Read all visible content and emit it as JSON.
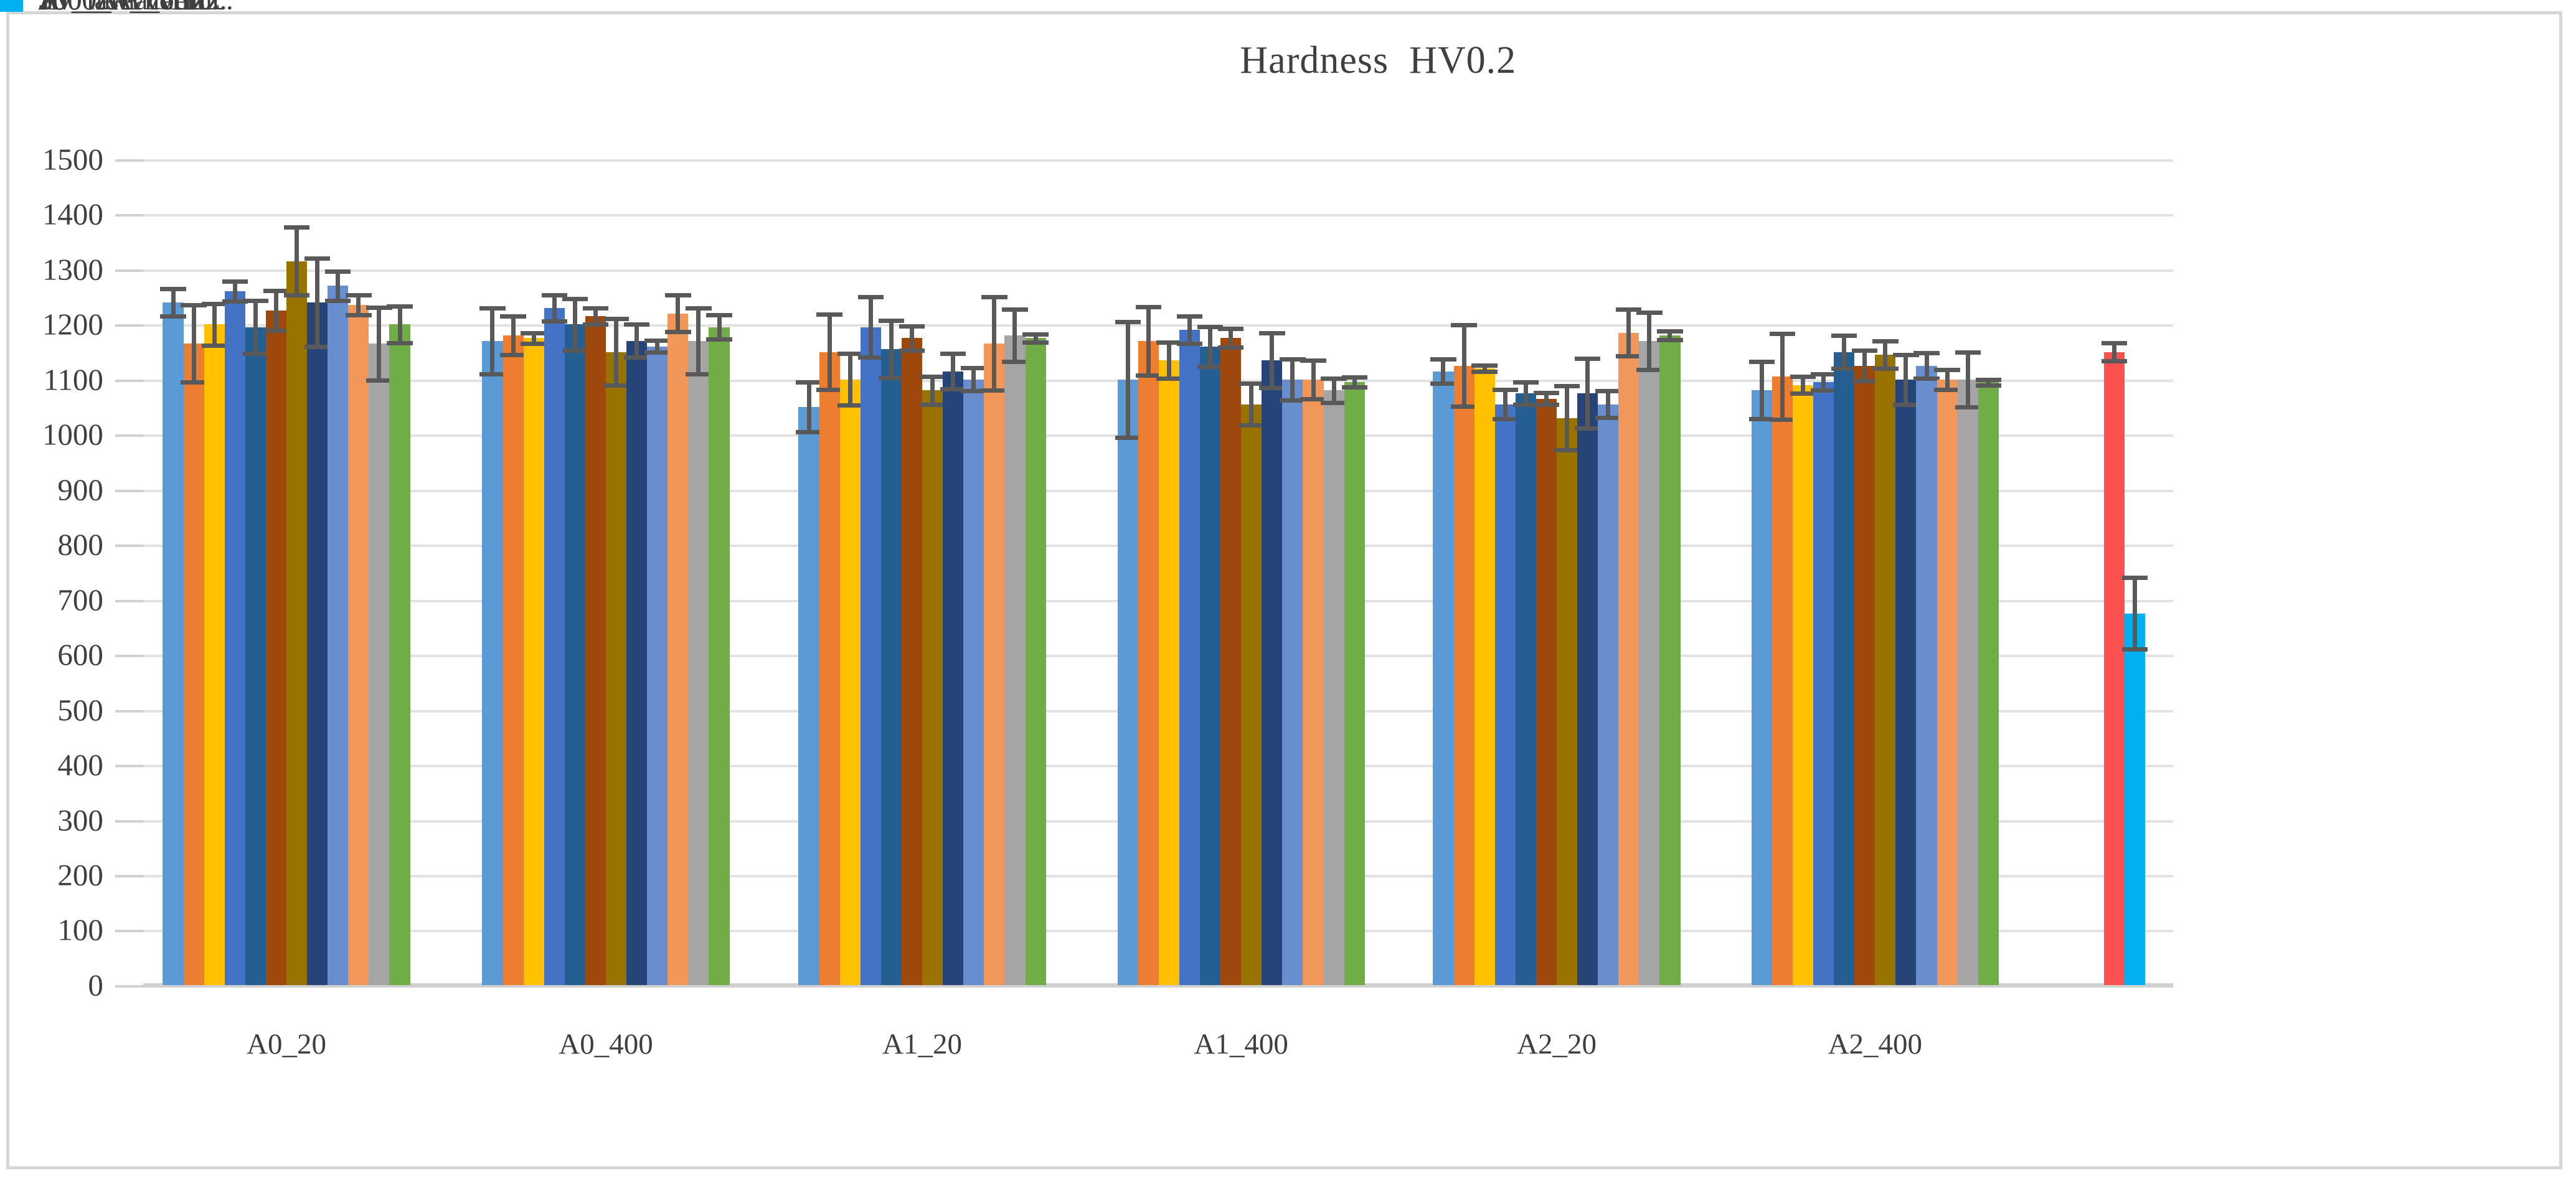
{
  "chart_data": {
    "type": "bar",
    "title": "Hardness  HV0.2",
    "xlabel": "",
    "ylabel": "",
    "categories": [
      "A0_20",
      "A0_400",
      "A1_20",
      "A1_400",
      "A2_20",
      "A2_400"
    ],
    "y_axis": {
      "min": 0,
      "max": 1500,
      "step": 100,
      "tick_labels": [
        "0",
        "100",
        "200",
        "300",
        "400",
        "500",
        "600",
        "700",
        "800",
        "900",
        "1000",
        "1100",
        "1200",
        "1300",
        "1400",
        "1500"
      ]
    },
    "grid": true,
    "legend_position": "right",
    "error_bars": true,
    "series": [
      {
        "name": "250_Av_vertic.",
        "color": "#5B9BD5",
        "values": [
          1240,
          1170,
          1050,
          1100,
          1115,
          1080
        ],
        "errors": [
          25,
          60,
          45,
          105,
          22,
          52
        ]
      },
      {
        "name": "250_Av_horiz.",
        "color": "#ED7D31",
        "values": [
          1165,
          1180,
          1150,
          1170,
          1125,
          1105
        ],
        "errors": [
          70,
          35,
          68,
          62,
          74,
          78
        ]
      },
      {
        "name": "250_Av",
        "color": "#FFC000",
        "values": [
          1200,
          1175,
          1100,
          1135,
          1120,
          1090
        ],
        "errors": [
          38,
          10,
          47,
          33,
          6,
          15
        ]
      },
      {
        "name": "500_Av_vertic.",
        "color": "#4472C4",
        "values": [
          1260,
          1230,
          1195,
          1190,
          1055,
          1095
        ],
        "errors": [
          18,
          24,
          55,
          25,
          27,
          15
        ]
      },
      {
        "name": "500_Av_horiz.",
        "color": "#255E91",
        "values": [
          1195,
          1200,
          1155,
          1160,
          1075,
          1150
        ],
        "errors": [
          48,
          47,
          52,
          36,
          20,
          30
        ]
      },
      {
        "name": "500_Av",
        "color": "#9E480E",
        "values": [
          1225,
          1215,
          1175,
          1175,
          1065,
          1125
        ],
        "errors": [
          36,
          15,
          22,
          17,
          11,
          28
        ]
      },
      {
        "name": "750_Av_vertic.",
        "color": "#997300",
        "values": [
          1315,
          1150,
          1080,
          1055,
          1030,
          1145
        ],
        "errors": [
          62,
          60,
          25,
          38,
          58,
          25
        ]
      },
      {
        "name": "750_Av_horiz.",
        "color": "#264478",
        "values": [
          1240,
          1170,
          1115,
          1135,
          1075,
          1100
        ],
        "errors": [
          80,
          30,
          32,
          50,
          63,
          45
        ]
      },
      {
        "name": "750_Av",
        "color": "#698ED0",
        "values": [
          1270,
          1160,
          1100,
          1100,
          1055,
          1125
        ],
        "errors": [
          27,
          11,
          21,
          37,
          24,
          23
        ]
      },
      {
        "name": "1000_Av_vertic.",
        "color": "#F1975A",
        "values": [
          1235,
          1220,
          1165,
          1100,
          1185,
          1100
        ],
        "errors": [
          18,
          33,
          85,
          35,
          42,
          18
        ]
      },
      {
        "name": "1000_Av_horiz.",
        "color": "#A5A5A5",
        "values": [
          1165,
          1170,
          1180,
          1080,
          1170,
          1100
        ],
        "errors": [
          66,
          60,
          48,
          22,
          52,
          50
        ]
      },
      {
        "name": "1000_Av",
        "color": "#70AD47",
        "values": [
          1200,
          1195,
          1175,
          1095,
          1180,
          1095
        ],
        "errors": [
          33,
          22,
          7,
          9,
          8,
          5
        ]
      }
    ],
    "extra_series": [
      {
        "name": "Av_laser",
        "color": "#FA5050",
        "value": 1150,
        "error": 16
      },
      {
        "name": "Av_furnace",
        "color": "#00B0F0",
        "value": 675,
        "error": 65
      }
    ],
    "legend_entries": [
      "250_Av_vertic.",
      "250_Av_horiz.",
      "250_Av",
      "500_Av_vertic.",
      "500_Av_horiz.",
      "500_Av",
      "750_Av_vertic.",
      "750_Av_horiz.",
      "750_Av",
      "1000_Av_vertic.",
      "1000_Av_horiz.",
      "1000_Av",
      "Av_laser",
      "Av_furnace"
    ]
  },
  "colors": {
    "gridline": "#E2E2E2",
    "axis_line": "#D0D0D0",
    "error_bar": "#595959",
    "text": "#3F3F3F",
    "frame": "#D6D6D6"
  }
}
